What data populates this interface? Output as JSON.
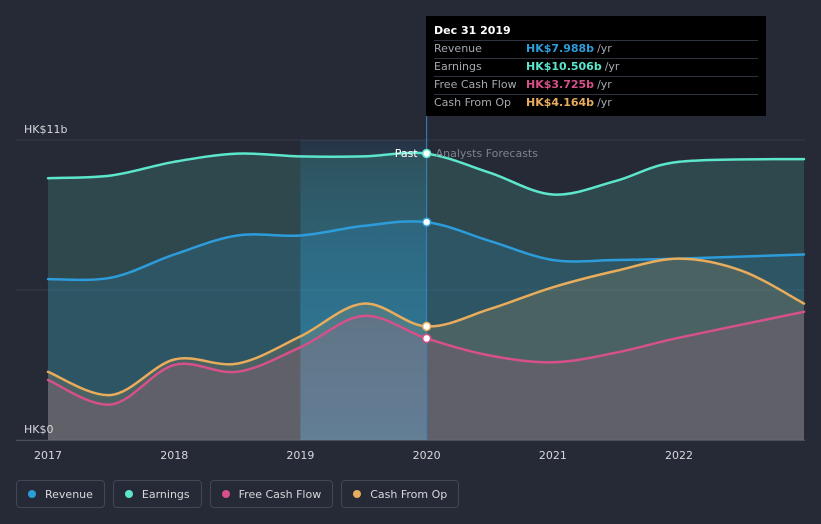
{
  "tooltip": {
    "date": "Dec 31 2019",
    "rows": [
      {
        "label": "Revenue",
        "value": "HK$7.988b",
        "unit": "/yr",
        "color": "#2d9cdb"
      },
      {
        "label": "Earnings",
        "value": "HK$10.506b",
        "unit": "/yr",
        "color": "#5ce6cc"
      },
      {
        "label": "Free Cash Flow",
        "value": "HK$3.725b",
        "unit": "/yr",
        "color": "#d6508a"
      },
      {
        "label": "Cash From Op",
        "value": "HK$4.164b",
        "unit": "/yr",
        "color": "#e8ac5c"
      }
    ]
  },
  "legend": [
    {
      "label": "Revenue",
      "color": "#2d9cdb"
    },
    {
      "label": "Earnings",
      "color": "#5ce6cc"
    },
    {
      "label": "Free Cash Flow",
      "color": "#d6508a"
    },
    {
      "label": "Cash From Op",
      "color": "#e8ac5c"
    }
  ],
  "chart_data": {
    "type": "area",
    "title": "",
    "xlabel": "",
    "ylabel": "",
    "unit": "HK$b",
    "xlim": [
      2017.0,
      2022.99
    ],
    "ylim": [
      0,
      11
    ],
    "y_tick_labels": [
      {
        "value": 11,
        "label": "HK$11b"
      },
      {
        "value": 0,
        "label": "HK$0"
      }
    ],
    "x_ticks": [
      2017,
      2018,
      2019,
      2020,
      2021,
      2022
    ],
    "divider_x": 2020.0,
    "past_label": "Past",
    "forecast_label": "Analysts Forecasts",
    "series": [
      {
        "name": "Earnings",
        "color": "#5ce6cc",
        "points": [
          [
            2017.0,
            9.6
          ],
          [
            2017.5,
            9.7
          ],
          [
            2018.0,
            10.2
          ],
          [
            2018.5,
            10.5
          ],
          [
            2019.0,
            10.4
          ],
          [
            2019.5,
            10.4
          ],
          [
            2020.0,
            10.5
          ],
          [
            2020.5,
            9.8
          ],
          [
            2021.0,
            9.0
          ],
          [
            2021.5,
            9.5
          ],
          [
            2022.0,
            10.2
          ],
          [
            2022.99,
            10.3
          ]
        ]
      },
      {
        "name": "Revenue",
        "color": "#2d9cdb",
        "points": [
          [
            2017.0,
            5.9
          ],
          [
            2017.5,
            5.95
          ],
          [
            2018.0,
            6.8
          ],
          [
            2018.5,
            7.5
          ],
          [
            2019.0,
            7.5
          ],
          [
            2019.5,
            7.85
          ],
          [
            2020.0,
            7.988
          ],
          [
            2020.5,
            7.3
          ],
          [
            2021.0,
            6.6
          ],
          [
            2021.5,
            6.6
          ],
          [
            2022.0,
            6.65
          ],
          [
            2022.99,
            6.8
          ]
        ]
      },
      {
        "name": "Cash From Op",
        "color": "#e8ac5c",
        "points": [
          [
            2017.0,
            2.5
          ],
          [
            2017.5,
            1.65
          ],
          [
            2018.0,
            2.95
          ],
          [
            2018.5,
            2.8
          ],
          [
            2019.0,
            3.8
          ],
          [
            2019.5,
            5.0
          ],
          [
            2020.0,
            4.164
          ],
          [
            2020.5,
            4.8
          ],
          [
            2021.0,
            5.6
          ],
          [
            2021.5,
            6.2
          ],
          [
            2022.0,
            6.65
          ],
          [
            2022.5,
            6.2
          ],
          [
            2022.99,
            5.0
          ]
        ]
      },
      {
        "name": "Free Cash Flow",
        "color": "#d6508a",
        "points": [
          [
            2017.0,
            2.2
          ],
          [
            2017.5,
            1.3
          ],
          [
            2018.0,
            2.75
          ],
          [
            2018.5,
            2.5
          ],
          [
            2019.0,
            3.4
          ],
          [
            2019.5,
            4.55
          ],
          [
            2020.0,
            3.725
          ],
          [
            2020.5,
            3.1
          ],
          [
            2021.0,
            2.85
          ],
          [
            2021.5,
            3.2
          ],
          [
            2022.0,
            3.75
          ],
          [
            2022.99,
            4.7
          ]
        ]
      }
    ],
    "highlight_points": [
      {
        "series": "Earnings",
        "x": 2020.0,
        "y": 10.506
      },
      {
        "series": "Revenue",
        "x": 2020.0,
        "y": 7.988
      },
      {
        "series": "Cash From Op",
        "x": 2020.0,
        "y": 4.164
      },
      {
        "series": "Free Cash Flow",
        "x": 2020.0,
        "y": 3.725
      }
    ]
  }
}
